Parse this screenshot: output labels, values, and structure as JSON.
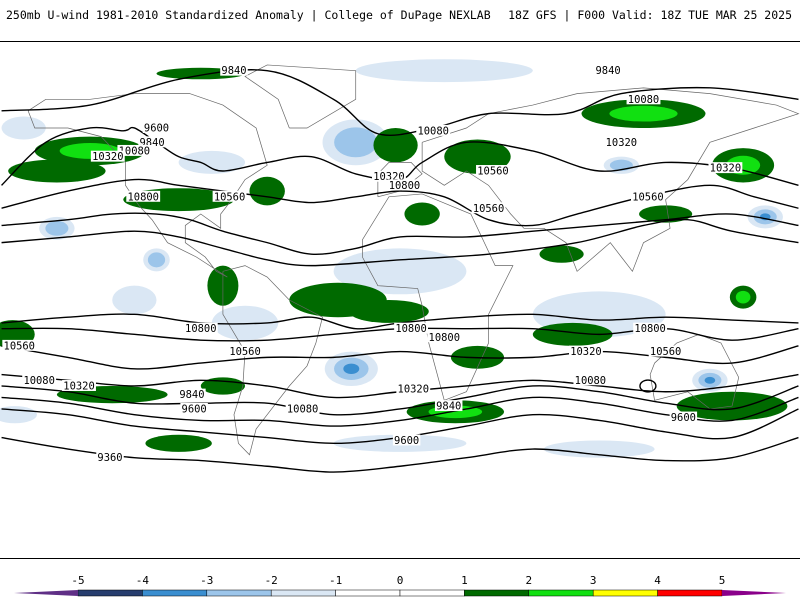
{
  "header": {
    "left": "250mb U-wind 1981-2010 Standardized Anomaly | College of DuPage NEXLAB",
    "right": "18Z GFS | F000 Valid: 18Z TUE MAR 25 2025"
  },
  "contours": [
    {
      "label": "9840",
      "lx": -73,
      "ly": 82,
      "pts": [
        [
          -180,
          66
        ],
        [
          -140,
          68
        ],
        [
          -100,
          77
        ],
        [
          -60,
          80
        ],
        [
          -30,
          70
        ],
        [
          -10,
          58
        ],
        [
          15,
          60
        ],
        [
          40,
          65
        ],
        [
          75,
          65
        ],
        [
          100,
          72
        ],
        [
          140,
          74
        ],
        [
          180,
          70
        ]
      ]
    },
    {
      "label": "10080",
      "lx": -122,
      "ly": 58,
      "pts": [
        [
          -180,
          40
        ],
        [
          -160,
          55
        ],
        [
          -140,
          60
        ],
        [
          -125,
          59
        ],
        [
          -120,
          60
        ],
        [
          -110,
          55
        ],
        [
          -100,
          50
        ],
        [
          -90,
          48
        ],
        [
          -80,
          45
        ],
        [
          -60,
          48
        ],
        [
          -40,
          50
        ],
        [
          -20,
          44
        ],
        [
          0,
          42
        ],
        [
          10,
          48
        ],
        [
          30,
          55
        ],
        [
          60,
          52
        ],
        [
          90,
          45
        ],
        [
          120,
          48
        ],
        [
          150,
          46
        ],
        [
          180,
          40
        ]
      ]
    },
    {
      "label": "10320",
      "lx": -99,
      "ly": 40,
      "pts": [
        [
          -180,
          32
        ],
        [
          -150,
          38
        ],
        [
          -120,
          42
        ],
        [
          -100,
          40
        ],
        [
          -80,
          38
        ],
        [
          -60,
          36
        ],
        [
          -40,
          34
        ],
        [
          -20,
          36
        ],
        [
          0,
          38
        ],
        [
          20,
          36
        ],
        [
          40,
          28
        ],
        [
          60,
          26
        ],
        [
          80,
          30
        ],
        [
          110,
          36
        ],
        [
          140,
          40
        ],
        [
          160,
          36
        ],
        [
          180,
          32
        ]
      ]
    },
    {
      "label": "10560",
      "lx": -84,
      "ly": 36,
      "pts": [
        [
          -180,
          26
        ],
        [
          -150,
          28
        ],
        [
          -130,
          30
        ],
        [
          -110,
          30
        ],
        [
          -95,
          28
        ],
        [
          -80,
          24
        ],
        [
          -60,
          20
        ],
        [
          -40,
          16
        ],
        [
          -20,
          18
        ],
        [
          0,
          22
        ],
        [
          30,
          22
        ],
        [
          60,
          24
        ],
        [
          90,
          26
        ],
        [
          120,
          28
        ],
        [
          150,
          30
        ],
        [
          180,
          26
        ]
      ]
    },
    {
      "label": "10800",
      "lx": 118,
      "ly": 28,
      "pts": [
        [
          -180,
          20
        ],
        [
          -150,
          22
        ],
        [
          -120,
          24
        ],
        [
          -100,
          22
        ],
        [
          -80,
          18
        ],
        [
          -60,
          14
        ],
        [
          -40,
          12
        ],
        [
          0,
          14
        ],
        [
          40,
          16
        ],
        [
          80,
          20
        ],
        [
          110,
          26
        ],
        [
          130,
          28
        ],
        [
          150,
          24
        ],
        [
          180,
          20
        ]
      ]
    },
    {
      "label": "10800",
      "lx": -95,
      "ly": -10,
      "pts": [
        [
          -180,
          -8
        ],
        [
          -150,
          -6
        ],
        [
          -120,
          -5
        ],
        [
          -90,
          -8
        ],
        [
          -60,
          -8
        ],
        [
          -40,
          -6
        ],
        [
          -20,
          -10
        ],
        [
          0,
          -8
        ],
        [
          30,
          -6
        ],
        [
          60,
          -5
        ],
        [
          90,
          -7
        ],
        [
          120,
          -6
        ],
        [
          150,
          -7
        ],
        [
          180,
          -8
        ]
      ]
    },
    {
      "label": "10800",
      "lx": 135,
      "ly": -10,
      "pts": [
        [
          -180,
          -10
        ],
        [
          -150,
          -10
        ],
        [
          -120,
          -12
        ],
        [
          -90,
          -14
        ],
        [
          -60,
          -14
        ],
        [
          -30,
          -12
        ],
        [
          0,
          -10
        ],
        [
          30,
          -10
        ],
        [
          60,
          -10
        ],
        [
          90,
          -12
        ],
        [
          120,
          -10
        ],
        [
          150,
          -14
        ],
        [
          180,
          -10
        ]
      ]
    },
    {
      "label": "10560",
      "lx": -167,
      "ly": -17,
      "pts": [
        [
          -180,
          -16
        ],
        [
          -150,
          -20
        ],
        [
          -120,
          -24
        ],
        [
          -90,
          -22
        ],
        [
          -60,
          -20
        ],
        [
          -30,
          -20
        ],
        [
          0,
          -18
        ],
        [
          30,
          -20
        ],
        [
          60,
          -20
        ],
        [
          90,
          -18
        ],
        [
          120,
          -20
        ],
        [
          150,
          -22
        ],
        [
          180,
          -16
        ]
      ]
    },
    {
      "label": "10320",
      "lx": -110,
      "ly": -23,
      "pts": [
        [
          -180,
          -26
        ],
        [
          -150,
          -28
        ],
        [
          -120,
          -30
        ],
        [
          -90,
          -28
        ],
        [
          -60,
          -30
        ],
        [
          -30,
          -34
        ],
        [
          0,
          -32
        ],
        [
          30,
          -30
        ],
        [
          60,
          -28
        ],
        [
          90,
          -30
        ],
        [
          120,
          -32
        ],
        [
          150,
          -30
        ],
        [
          180,
          -26
        ]
      ]
    },
    {
      "label": "10080",
      "lx": -164,
      "ly": -29,
      "pts": [
        [
          -180,
          -30
        ],
        [
          -150,
          -32
        ],
        [
          -120,
          -36
        ],
        [
          -90,
          -36
        ],
        [
          -60,
          -36
        ],
        [
          -30,
          -40
        ],
        [
          0,
          -38
        ],
        [
          30,
          -34
        ],
        [
          60,
          -30
        ],
        [
          90,
          -32
        ],
        [
          120,
          -36
        ],
        [
          150,
          -38
        ],
        [
          180,
          -30
        ]
      ]
    },
    {
      "label": "9840",
      "lx": -94,
      "ly": -33,
      "pts": [
        [
          -180,
          -34
        ],
        [
          -150,
          -36
        ],
        [
          -120,
          -40
        ],
        [
          -90,
          -42
        ],
        [
          -60,
          -42
        ],
        [
          -30,
          -44
        ],
        [
          0,
          -42
        ],
        [
          30,
          -38
        ],
        [
          60,
          -34
        ],
        [
          90,
          -36
        ],
        [
          120,
          -40
        ],
        [
          150,
          -42
        ],
        [
          180,
          -34
        ]
      ]
    },
    {
      "label": "9600",
      "lx": -92,
      "ly": -38,
      "pts": [
        [
          -180,
          -38
        ],
        [
          -150,
          -40
        ],
        [
          -120,
          -44
        ],
        [
          -90,
          -46
        ],
        [
          -60,
          -48
        ],
        [
          -30,
          -50
        ],
        [
          0,
          -48
        ],
        [
          30,
          -44
        ],
        [
          60,
          -40
        ],
        [
          90,
          -42
        ],
        [
          120,
          -46
        ],
        [
          150,
          -48
        ],
        [
          180,
          -38
        ]
      ]
    },
    {
      "label": "9360",
      "lx": -131,
      "ly": -55,
      "pts": [
        [
          -180,
          -48
        ],
        [
          -150,
          -52
        ],
        [
          -120,
          -55
        ],
        [
          -90,
          -56
        ],
        [
          -60,
          -58
        ],
        [
          -30,
          -60
        ],
        [
          0,
          -58
        ],
        [
          30,
          -55
        ],
        [
          60,
          -52
        ],
        [
          90,
          -54
        ],
        [
          120,
          -56
        ],
        [
          150,
          -55
        ],
        [
          180,
          -48
        ]
      ]
    }
  ],
  "contour_labels": [
    {
      "text": "9840",
      "lon": -75,
      "lat": 80
    },
    {
      "text": "9600",
      "lon": -110,
      "lat": 60
    },
    {
      "text": "9840",
      "lon": -112,
      "lat": 55
    },
    {
      "text": "10080",
      "lon": -120,
      "lat": 52
    },
    {
      "text": "10320",
      "lon": -132,
      "lat": 50
    },
    {
      "text": "10560",
      "lon": -77,
      "lat": 36
    },
    {
      "text": "10800",
      "lon": -116,
      "lat": 36
    },
    {
      "text": "10080",
      "lon": 15,
      "lat": 59
    },
    {
      "text": "10560",
      "lon": 42,
      "lat": 45
    },
    {
      "text": "10320",
      "lon": -5,
      "lat": 43
    },
    {
      "text": "10320",
      "lon": 100,
      "lat": 55
    },
    {
      "text": "10800",
      "lon": 2,
      "lat": 40
    },
    {
      "text": "10560",
      "lon": 40,
      "lat": 32
    },
    {
      "text": "10320",
      "lon": 147,
      "lat": 46
    },
    {
      "text": "10080",
      "lon": 110,
      "lat": 70
    },
    {
      "text": "10560",
      "lon": 112,
      "lat": 36
    },
    {
      "text": "9840",
      "lon": 94,
      "lat": 80
    },
    {
      "text": "10800",
      "lon": -90,
      "lat": -10
    },
    {
      "text": "10560",
      "lon": -70,
      "lat": -18
    },
    {
      "text": "10080",
      "lon": -163,
      "lat": -28
    },
    {
      "text": "10320",
      "lon": -145,
      "lat": -30
    },
    {
      "text": "9840",
      "lon": -94,
      "lat": -33
    },
    {
      "text": "9600",
      "lon": -93,
      "lat": -38
    },
    {
      "text": "10080",
      "lon": -44,
      "lat": -38
    },
    {
      "text": "9360",
      "lon": -131,
      "lat": -55
    },
    {
      "text": "10560",
      "lon": -172,
      "lat": -16
    },
    {
      "text": "10800",
      "lon": 5,
      "lat": -10
    },
    {
      "text": "10800",
      "lon": 20,
      "lat": -13
    },
    {
      "text": "10320",
      "lon": 6,
      "lat": -31
    },
    {
      "text": "9840",
      "lon": 22,
      "lat": -37
    },
    {
      "text": "9600",
      "lon": 3,
      "lat": -49
    },
    {
      "text": "10320",
      "lon": 84,
      "lat": -18
    },
    {
      "text": "10080",
      "lon": 86,
      "lat": -28
    },
    {
      "text": "10800",
      "lon": 113,
      "lat": -10
    },
    {
      "text": "10560",
      "lon": 120,
      "lat": -18
    },
    {
      "text": "9600",
      "lon": 128,
      "lat": -41
    }
  ],
  "anomaly_shading": {
    "positive": [
      {
        "lon": -140,
        "lat": 52,
        "rx": 25,
        "ry": 5,
        "level": 3
      },
      {
        "lon": -155,
        "lat": 45,
        "rx": 22,
        "ry": 4,
        "level": 2
      },
      {
        "lon": -100,
        "lat": 35,
        "rx": 25,
        "ry": 4,
        "level": 2
      },
      {
        "lon": -60,
        "lat": 38,
        "rx": 8,
        "ry": 5,
        "level": 2
      },
      {
        "lon": -90,
        "lat": 79,
        "rx": 20,
        "ry": 2,
        "level": 2
      },
      {
        "lon": -2,
        "lat": 54,
        "rx": 10,
        "ry": 6,
        "level": 2
      },
      {
        "lon": 35,
        "lat": 50,
        "rx": 15,
        "ry": 6,
        "level": 2
      },
      {
        "lon": 10,
        "lat": 30,
        "rx": 8,
        "ry": 4,
        "level": 2
      },
      {
        "lon": 110,
        "lat": 65,
        "rx": 28,
        "ry": 5,
        "level": 3
      },
      {
        "lon": 155,
        "lat": 47,
        "rx": 14,
        "ry": 6,
        "level": 3
      },
      {
        "lon": 120,
        "lat": 30,
        "rx": 12,
        "ry": 3,
        "level": 2
      },
      {
        "lon": 73,
        "lat": 16,
        "rx": 10,
        "ry": 3,
        "level": 2
      },
      {
        "lon": -80,
        "lat": 5,
        "rx": 7,
        "ry": 7,
        "level": 2
      },
      {
        "lon": -28,
        "lat": 0,
        "rx": 22,
        "ry": 6,
        "level": 2
      },
      {
        "lon": -5,
        "lat": -4,
        "rx": 18,
        "ry": 4,
        "level": 2
      },
      {
        "lon": 155,
        "lat": 1,
        "rx": 6,
        "ry": 4,
        "level": 3
      },
      {
        "lon": -175,
        "lat": -12,
        "rx": 10,
        "ry": 5,
        "level": 2
      },
      {
        "lon": -130,
        "lat": -33,
        "rx": 25,
        "ry": 3,
        "level": 2
      },
      {
        "lon": -80,
        "lat": -30,
        "rx": 10,
        "ry": 3,
        "level": 2
      },
      {
        "lon": 25,
        "lat": -39,
        "rx": 22,
        "ry": 4,
        "level": 3
      },
      {
        "lon": 35,
        "lat": -20,
        "rx": 12,
        "ry": 4,
        "level": 2
      },
      {
        "lon": 78,
        "lat": -12,
        "rx": 18,
        "ry": 4,
        "level": 2
      },
      {
        "lon": 150,
        "lat": -37,
        "rx": 25,
        "ry": 5,
        "level": 2
      },
      {
        "lon": -100,
        "lat": -50,
        "rx": 15,
        "ry": 3,
        "level": 2
      }
    ],
    "negative": [
      {
        "lon": 20,
        "lat": 80,
        "rx": 40,
        "ry": 4,
        "level": 1
      },
      {
        "lon": -170,
        "lat": 60,
        "rx": 10,
        "ry": 4,
        "level": 1
      },
      {
        "lon": -85,
        "lat": 48,
        "rx": 15,
        "ry": 4,
        "level": 1
      },
      {
        "lon": -20,
        "lat": 55,
        "rx": 15,
        "ry": 8,
        "level": 2
      },
      {
        "lon": 100,
        "lat": 47,
        "rx": 8,
        "ry": 3,
        "level": 2
      },
      {
        "lon": 165,
        "lat": 29,
        "rx": 8,
        "ry": 4,
        "level": 3
      },
      {
        "lon": -155,
        "lat": 25,
        "rx": 8,
        "ry": 4,
        "level": 2
      },
      {
        "lon": -110,
        "lat": 14,
        "rx": 6,
        "ry": 4,
        "level": 2
      },
      {
        "lon": -120,
        "lat": 0,
        "rx": 10,
        "ry": 5,
        "level": 1
      },
      {
        "lon": -70,
        "lat": -8,
        "rx": 15,
        "ry": 6,
        "level": 1
      },
      {
        "lon": -22,
        "lat": -24,
        "rx": 12,
        "ry": 6,
        "level": 3
      },
      {
        "lon": 140,
        "lat": -28,
        "rx": 8,
        "ry": 4,
        "level": 3
      },
      {
        "lon": -174,
        "lat": -40,
        "rx": 10,
        "ry": 3,
        "level": 1
      },
      {
        "lon": 0,
        "lat": -50,
        "rx": 30,
        "ry": 3,
        "level": 1
      },
      {
        "lon": 90,
        "lat": -52,
        "rx": 25,
        "ry": 3,
        "level": 1
      },
      {
        "lon": 0,
        "lat": 10,
        "rx": 30,
        "ry": 8,
        "level": 1
      },
      {
        "lon": 90,
        "lat": -5,
        "rx": 30,
        "ry": 8,
        "level": 1
      }
    ]
  },
  "colors": {
    "neg5": "#5f2f86",
    "neg4": "#263d6e",
    "neg3": "#3a8ed0",
    "neg2": "#9cc5ea",
    "neg1": "#dae7f4",
    "zero": "#ffffff",
    "pos2": "#006a00",
    "pos3": "#11e011",
    "pos4": "#ffff00",
    "pos5": "#ff0000",
    "pos6": "#8a008a",
    "land": "#ffffff",
    "contour": "#000000",
    "coastline": "#666666"
  },
  "legend": {
    "ticks": [
      "-5",
      "-4",
      "-3",
      "-2",
      "-1",
      "0",
      "1",
      "2",
      "3",
      "4",
      "5"
    ],
    "colors": [
      "#263d6e",
      "#3a8ed0",
      "#9cc5ea",
      "#dae7f4",
      "#ffffff",
      "#ffffff",
      "#006a00",
      "#11e011",
      "#ffff00",
      "#ff0000"
    ]
  }
}
